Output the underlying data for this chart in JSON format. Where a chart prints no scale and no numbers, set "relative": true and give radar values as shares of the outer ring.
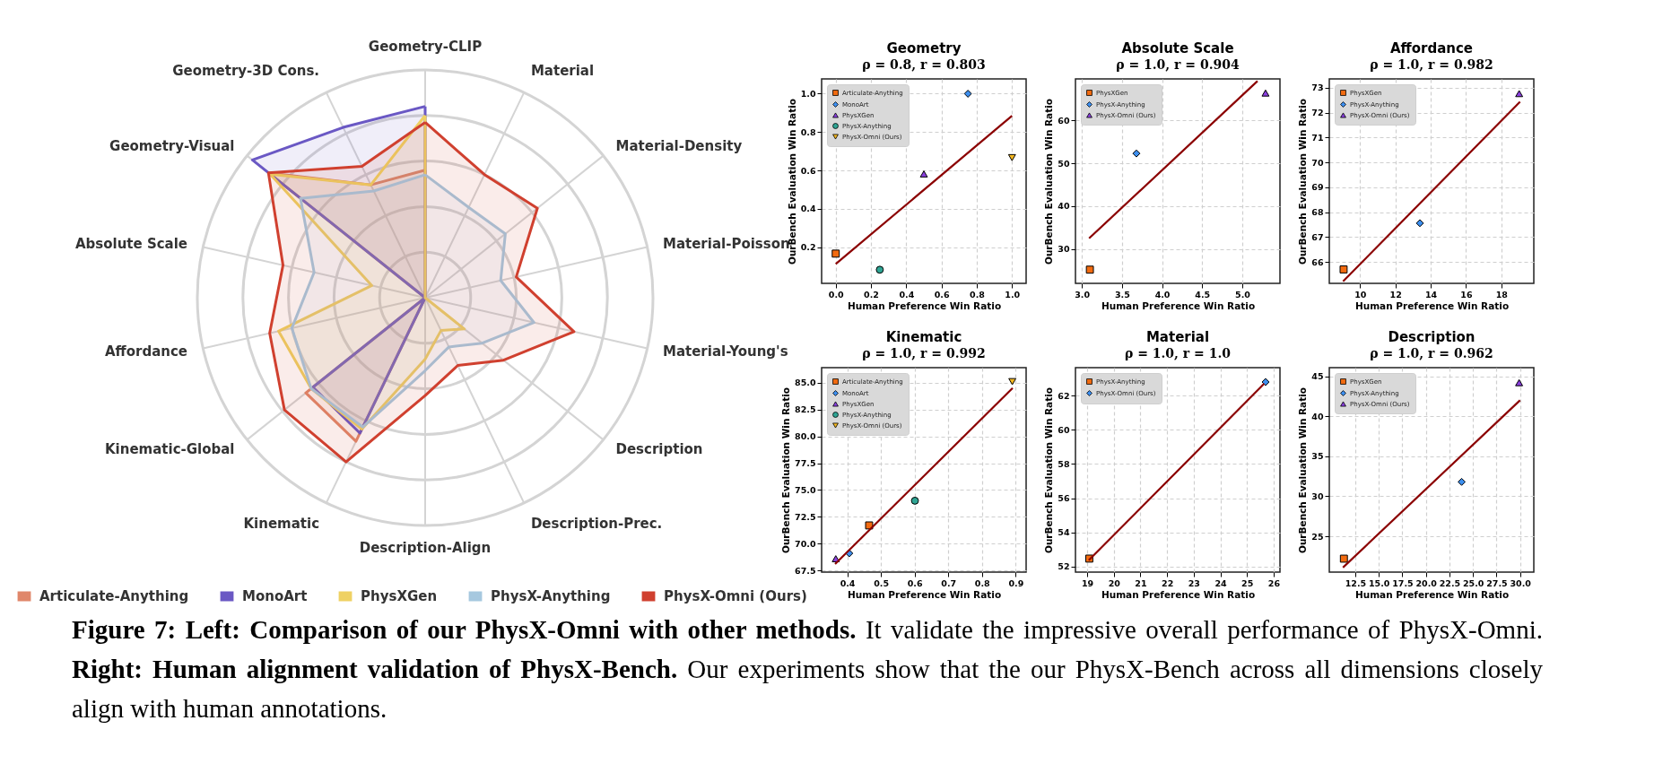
{
  "chart_data": [
    {
      "type": "radar",
      "categories": [
        "Geometry-CLIP",
        "Material",
        "Material-Density",
        "Material-Poisson",
        "Material-Young's",
        "Description",
        "Description-Prec.",
        "Description-Align",
        "Kinematic",
        "Kinematic-Global",
        "Affordance",
        "Absolute Scale",
        "Geometry-Visual",
        "Geometry-3D Cons."
      ],
      "relative": true,
      "grid": true,
      "legend": "bottom",
      "series": [
        {
          "name": "Articulate-Anything",
          "color": "#e0876a",
          "values": [
            0.56,
            0,
            0,
            0,
            0,
            0,
            0,
            0,
            0.7,
            0.67,
            0,
            0,
            0.88,
            0.55
          ]
        },
        {
          "name": "MonoArt",
          "color": "#6a58c4",
          "values": [
            0.84,
            0,
            0,
            0,
            0,
            0,
            0,
            0,
            0.66,
            0.63,
            0,
            0,
            0.97,
            0.83
          ]
        },
        {
          "name": "PhysXGen",
          "color": "#efd163",
          "values": [
            0.8,
            0,
            0,
            0,
            0,
            0.22,
            0.16,
            0.27,
            0.64,
            0.64,
            0.66,
            0.24,
            0.87,
            0.55
          ]
        },
        {
          "name": "PhysX-Anything",
          "color": "#a6c8df",
          "values": [
            0.54,
            0.44,
            0.45,
            0.34,
            0.49,
            0.32,
            0.24,
            0.32,
            0.63,
            0.64,
            0.6,
            0.5,
            0.7,
            0.52
          ]
        },
        {
          "name": "PhysX-Omni (Ours)",
          "color": "#d0402f",
          "values": [
            0.77,
            0.6,
            0.63,
            0.41,
            0.67,
            0.44,
            0.33,
            0.43,
            0.8,
            0.79,
            0.7,
            0.64,
            0.88,
            0.64
          ]
        }
      ],
      "annotations": [
        "Figure 7: Left: Comparison of our PhysX-Omni with other methods.",
        "It validate the impressive overall performance of PhysX-Omni.",
        "Right: Human alignment validation of PhysX-Bench.",
        "Our experiments show that the our PhysX-Bench across all dimensions closely align with human annotations."
      ]
    },
    {
      "type": "scatter",
      "title": "Geometry",
      "subtitle": "ρ = 0.8, r = 0.803",
      "xlabel": "Human Preference Win Ratio",
      "ylabel": "OurBench Evaluation Win Ratio",
      "xlim": [
        -0.08,
        1.08
      ],
      "xticks": [
        {
          "value": 0,
          "label": "0.0"
        },
        0.2,
        0.4,
        0.6,
        0.8,
        {
          "value": 1,
          "label": "1.0"
        }
      ],
      "ylim": [
        0.012,
        1.077
      ],
      "yticks": [
        0.2,
        0.4,
        0.6,
        0.8,
        {
          "value": 1,
          "label": "1.0"
        }
      ],
      "grid": true,
      "legend": "top left",
      "series": [
        {
          "name": "Articulate-Anything",
          "color": "#f26b10",
          "marker": "square",
          "x": [
            0
          ],
          "values": [
            0.167
          ]
        },
        {
          "name": "MonoArt",
          "color": "#3d8fef",
          "marker": "diamond",
          "x": [
            0.75
          ],
          "values": [
            1.0
          ]
        },
        {
          "name": "PhysXGen",
          "color": "#8a3fe0",
          "marker": "triangle",
          "x": [
            0.5
          ],
          "values": [
            0.582
          ]
        },
        {
          "name": "PhysX-Anything",
          "color": "#2fa594",
          "marker": "circle",
          "x": [
            0.25
          ],
          "values": [
            0.083
          ]
        },
        {
          "name": "PhysX-Omni (Ours)",
          "color": "#f5b820",
          "marker": "triangle-down",
          "x": [
            1.0
          ],
          "values": [
            0.667
          ]
        },
        {
          "type": "line",
          "color": "#8b0000",
          "x": [
            0,
            1.0
          ],
          "values": [
            0.113,
            0.885
          ]
        }
      ]
    },
    {
      "type": "scatter",
      "title": "Absolute Scale",
      "subtitle": "ρ = 1.0, r = 0.904",
      "xlabel": "Human Preference Win Ratio",
      "ylabel": "OurBench Evaluation Win Ratio",
      "xlim": [
        2.92,
        5.47
      ],
      "xticks": [
        {
          "value": 3,
          "label": "3.0"
        },
        3.5,
        {
          "value": 4,
          "label": "4.0"
        },
        4.5,
        {
          "value": 5,
          "label": "5.0"
        }
      ],
      "ylim": [
        22.0,
        69.7
      ],
      "yticks": [
        30,
        40,
        50,
        60
      ],
      "grid": true,
      "legend": "top left",
      "series": [
        {
          "name": "PhysXGen",
          "color": "#f26b10",
          "marker": "square",
          "x": [
            3.1
          ],
          "values": [
            25.2
          ]
        },
        {
          "name": "PhysX-Anything",
          "color": "#3d8fef",
          "marker": "diamond",
          "x": [
            3.68
          ],
          "values": [
            52.3
          ]
        },
        {
          "name": "PhysX-Omni (Ours)",
          "color": "#8a3fe0",
          "marker": "triangle",
          "x": [
            5.29
          ],
          "values": [
            66.4
          ]
        },
        {
          "type": "line",
          "color": "#8b0000",
          "x": [
            3.09,
            5.19
          ],
          "values": [
            32.5,
            69.2
          ]
        }
      ]
    },
    {
      "type": "scatter",
      "title": "Affordance",
      "subtitle": "ρ = 1.0, r = 0.982",
      "xlabel": "Human Preference Win Ratio",
      "ylabel": "OurBench Evaluation Win Ratio",
      "xlim": [
        8.26,
        19.84
      ],
      "xticks": [
        10,
        12,
        14,
        16,
        18
      ],
      "ylim": [
        65.14,
        73.36
      ],
      "yticks": [
        66,
        67,
        68,
        69,
        70,
        71,
        72,
        73
      ],
      "grid": true,
      "legend": "top left",
      "series": [
        {
          "name": "PhysXGen",
          "color": "#f26b10",
          "marker": "square",
          "x": [
            9.07
          ],
          "values": [
            65.7
          ]
        },
        {
          "name": "PhysX-Anything",
          "color": "#3d8fef",
          "marker": "diamond",
          "x": [
            13.39
          ],
          "values": [
            67.56
          ]
        },
        {
          "name": "PhysX-Omni (Ours)",
          "color": "#8a3fe0",
          "marker": "triangle",
          "x": [
            19.01
          ],
          "values": [
            72.77
          ]
        },
        {
          "type": "line",
          "color": "#8b0000",
          "x": [
            9.04,
            19.06
          ],
          "values": [
            65.22,
            72.44
          ]
        }
      ]
    },
    {
      "type": "scatter",
      "title": "Kinematic",
      "subtitle": "ρ = 1.0, r = 0.992",
      "xlabel": "Human Preference Win Ratio",
      "ylabel": "OurBench Evaluation Win Ratio",
      "xlim": [
        0.324,
        0.931
      ],
      "xticks": [
        0.4,
        0.5,
        0.6,
        0.7,
        0.8,
        0.9
      ],
      "ylim": [
        67.35,
        86.4
      ],
      "yticks": [
        67.5,
        {
          "value": 70,
          "label": "70.0"
        },
        72.5,
        {
          "value": 75,
          "label": "75.0"
        },
        77.5,
        {
          "value": 80,
          "label": "80.0"
        },
        82.5,
        {
          "value": 85,
          "label": "85.0"
        }
      ],
      "grid": true,
      "legend": "top left",
      "series": [
        {
          "name": "Articulate-Anything",
          "color": "#f26b10",
          "marker": "square",
          "x": [
            0.465
          ],
          "values": [
            71.7
          ]
        },
        {
          "name": "MonoArt",
          "color": "#3d8fef",
          "marker": "diamond",
          "x": [
            0.406
          ],
          "values": [
            69.1
          ]
        },
        {
          "name": "PhysXGen",
          "color": "#8a3fe0",
          "marker": "triangle",
          "x": [
            0.366
          ],
          "values": [
            68.6
          ]
        },
        {
          "name": "PhysX-Anything",
          "color": "#2fa594",
          "marker": "circle",
          "x": [
            0.601
          ],
          "values": [
            74.0
          ]
        },
        {
          "name": "PhysX-Omni (Ours)",
          "color": "#f5b820",
          "marker": "triangle-down",
          "x": [
            0.89
          ],
          "values": [
            85.1
          ]
        },
        {
          "type": "line",
          "color": "#8b0000",
          "x": [
            0.364,
            0.891
          ],
          "values": [
            68.1,
            84.5
          ]
        }
      ]
    },
    {
      "type": "scatter",
      "title": "Material",
      "subtitle": "ρ = 1.0, r = 1.0",
      "xlabel": "Human Preference Win Ratio",
      "ylabel": "OurBench Evaluation Win Ratio",
      "xlim": [
        18.56,
        26.24
      ],
      "xticks": [
        19,
        20,
        21,
        22,
        23,
        24,
        25,
        26
      ],
      "ylim": [
        51.68,
        63.63
      ],
      "yticks": [
        52,
        54,
        56,
        58,
        60,
        62
      ],
      "grid": true,
      "legend": "top left",
      "series": [
        {
          "name": "PhysX-Anything",
          "color": "#f26b10",
          "marker": "square",
          "x": [
            19.08
          ],
          "values": [
            52.47
          ]
        },
        {
          "name": "PhysX-Omni (Ours)",
          "color": "#3d8fef",
          "marker": "diamond",
          "x": [
            25.7
          ],
          "values": [
            62.79
          ]
        },
        {
          "type": "line",
          "color": "#8b0000",
          "x": [
            19.06,
            25.65
          ],
          "values": [
            52.37,
            62.7
          ]
        }
      ]
    },
    {
      "type": "scatter",
      "title": "Description",
      "subtitle": "ρ = 1.0, r = 0.962",
      "xlabel": "Human Preference Win Ratio",
      "ylabel": "OurBench Evaluation Win Ratio",
      "xlim": [
        9.75,
        31.46
      ],
      "xticks": [
        12.5,
        {
          "value": 15,
          "label": "15.0"
        },
        17.5,
        {
          "value": 20,
          "label": "20.0"
        },
        22.5,
        {
          "value": 25,
          "label": "25.0"
        },
        27.5,
        {
          "value": 30,
          "label": "30.0"
        }
      ],
      "ylim": [
        20.52,
        46.08
      ],
      "yticks": [
        25,
        30,
        35,
        40,
        45
      ],
      "grid": true,
      "legend": "top left",
      "series": [
        {
          "name": "PhysXGen",
          "color": "#f26b10",
          "marker": "square",
          "x": [
            11.3
          ],
          "values": [
            22.2
          ]
        },
        {
          "name": "PhysX-Anything",
          "color": "#3d8fef",
          "marker": "diamond",
          "x": [
            23.8
          ],
          "values": [
            31.8
          ]
        },
        {
          "name": "PhysX-Omni (Ours)",
          "color": "#8a3fe0",
          "marker": "triangle",
          "x": [
            29.9
          ],
          "values": [
            44.2
          ]
        },
        {
          "type": "line",
          "color": "#8b0000",
          "x": [
            11.2,
            30.0
          ],
          "values": [
            21.1,
            42.0
          ]
        }
      ]
    }
  ]
}
